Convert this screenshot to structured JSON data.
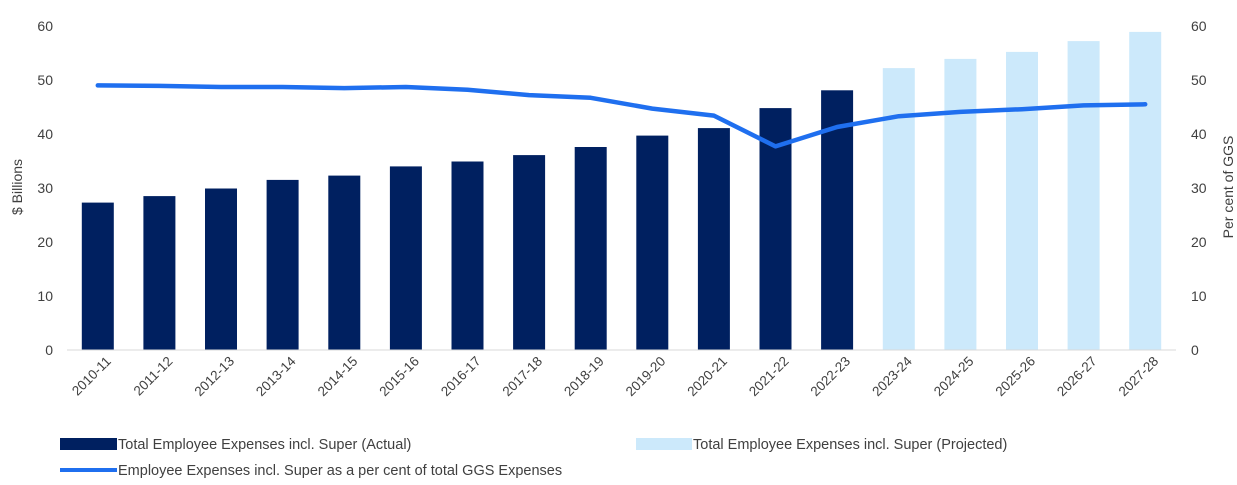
{
  "chart_data": {
    "type": "bar",
    "categories": [
      "2010-11",
      "2011-12",
      "2012-13",
      "2013-14",
      "2014-15",
      "2015-16",
      "2016-17",
      "2017-18",
      "2018-19",
      "2019-20",
      "2020-21",
      "2021-22",
      "2022-23",
      "2023-24",
      "2024-25",
      "2025-26",
      "2026-27",
      "2027-28"
    ],
    "series": [
      {
        "name": "Total Employee Expenses incl. Super (Actual)",
        "kind": "bar",
        "axis": "left",
        "color": "#002060",
        "values": [
          27.3,
          28.5,
          29.9,
          31.5,
          32.3,
          34.0,
          34.9,
          36.1,
          37.6,
          39.7,
          41.1,
          44.8,
          48.1,
          null,
          null,
          null,
          null,
          null
        ]
      },
      {
        "name": "Total Employee Expenses incl. Super  (Projected)",
        "kind": "bar",
        "axis": "left",
        "color": "#CCE9FB",
        "values": [
          null,
          null,
          null,
          null,
          null,
          null,
          null,
          null,
          null,
          null,
          null,
          null,
          null,
          52.2,
          53.9,
          55.2,
          57.2,
          58.9
        ]
      },
      {
        "name": "Employee Expenses incl. Super as a per cent of total GGS Expenses",
        "kind": "line",
        "axis": "right",
        "color": "#1F6FEF",
        "values": [
          49.0,
          48.9,
          48.7,
          48.7,
          48.5,
          48.7,
          48.2,
          47.2,
          46.7,
          44.7,
          43.4,
          37.7,
          41.3,
          43.3,
          44.1,
          44.6,
          45.3,
          45.5
        ]
      }
    ],
    "ylabel": "$ Billions",
    "y2label": "Per cent of GGS",
    "ylim": [
      0,
      60
    ],
    "y2lim": [
      0,
      60
    ],
    "yticks": [
      "0",
      "10",
      "20",
      "30",
      "40",
      "50",
      "60"
    ],
    "y2ticks": [
      "0",
      "10",
      "20",
      "30",
      "40",
      "50",
      "60"
    ],
    "grid": false,
    "legend_position": "bottom"
  }
}
